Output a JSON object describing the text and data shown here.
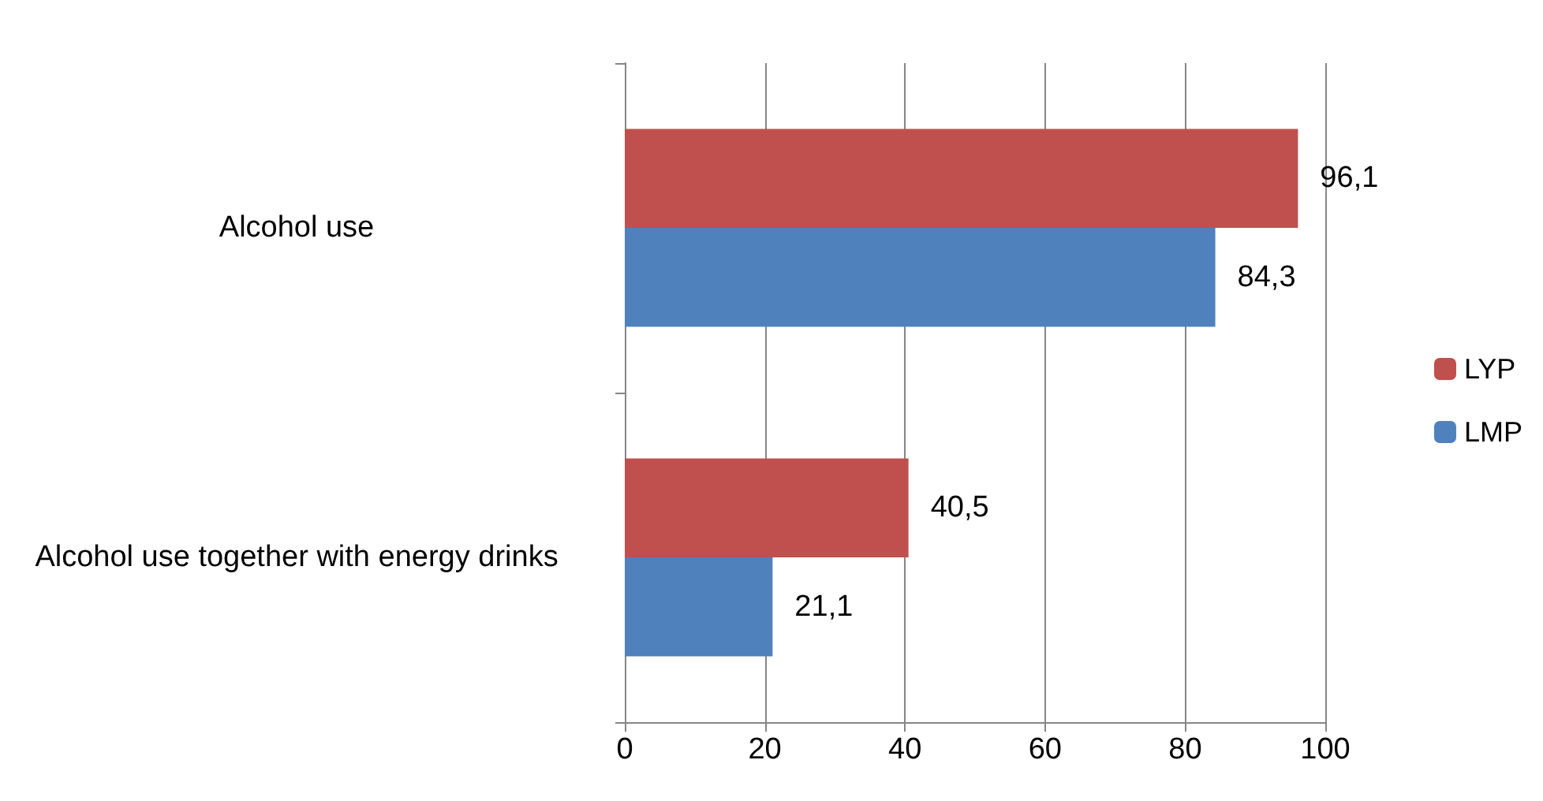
{
  "chart_data": {
    "type": "bar",
    "orientation": "horizontal",
    "categories": [
      "Alcohol use",
      "Alcohol use together with energy drinks"
    ],
    "series": [
      {
        "name": "LYP",
        "color": "#c0504d",
        "values": [
          96.1,
          40.5
        ],
        "value_labels": [
          "96,1",
          "40,5"
        ]
      },
      {
        "name": "LMP",
        "color": "#4f81bd",
        "values": [
          84.3,
          21.1
        ],
        "value_labels": [
          "84,3",
          "21,1"
        ]
      }
    ],
    "xlim": [
      0,
      100
    ],
    "xticks": [
      0,
      20,
      40,
      60,
      80,
      100
    ],
    "grid": "x",
    "legend": "right"
  }
}
